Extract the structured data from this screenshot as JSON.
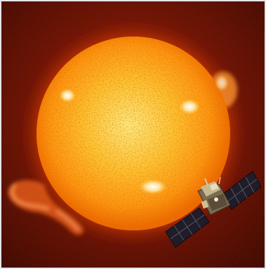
{
  "image": {
    "subject": "sun-with-solar-observatory-spacecraft",
    "colors": {
      "space_dark": "#3a0703",
      "space_mid": "#6a1206",
      "disk_core": "#fff2a0",
      "disk_mid": "#ffb020",
      "disk_edge": "#f06a00",
      "corona": "#d83a08",
      "prominence": "#ff8a3a",
      "active_region": "#fffbe8",
      "solar_panel": "#1f1d2a",
      "solar_panel_grid": "#5a5560",
      "spacecraft_body": "#9a8a6a",
      "frame_border": "#e6e6e6"
    },
    "icons": [
      "sun-disk",
      "solar-prominence",
      "spacecraft-icon"
    ]
  }
}
